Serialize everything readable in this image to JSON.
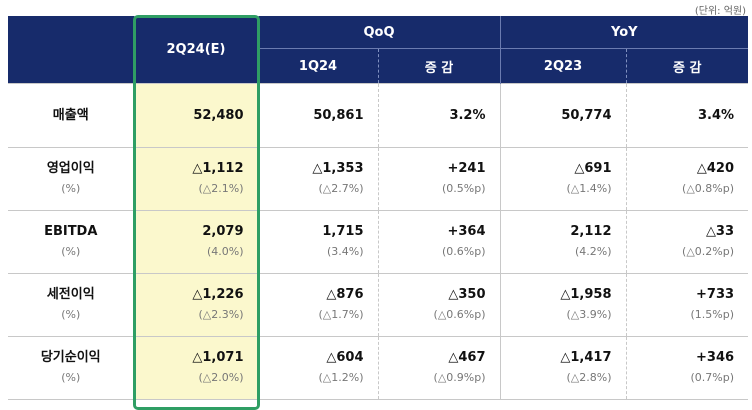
{
  "unit_note": "(단위: 억원)",
  "header": {
    "current": "2Q24(E)",
    "qoq_group": "QoQ",
    "yoy_group": "YoY",
    "q1": "1Q24",
    "qoq_change": "증 감",
    "q2": "2Q23",
    "yoy_change": "증 감"
  },
  "rows": [
    {
      "label": "매출액",
      "sub": "",
      "cur": "52,480",
      "cur_s": "",
      "q1": "50,861",
      "q1_s": "",
      "qoq": "3.2%",
      "qoq_s": "",
      "q2": "50,774",
      "q2_s": "",
      "yoy": "3.4%",
      "yoy_s": ""
    },
    {
      "label": "영업이익",
      "sub": "(%)",
      "cur": "△1,112",
      "cur_s": "(△2.1%)",
      "q1": "△1,353",
      "q1_s": "(△2.7%)",
      "qoq": "+241",
      "qoq_s": "(0.5%p)",
      "q2": "△691",
      "q2_s": "(△1.4%)",
      "yoy": "△420",
      "yoy_s": "(△0.8%p)"
    },
    {
      "label": "EBITDA",
      "sub": "(%)",
      "cur": "2,079",
      "cur_s": "(4.0%)",
      "q1": "1,715",
      "q1_s": "(3.4%)",
      "qoq": "+364",
      "qoq_s": "(0.6%p)",
      "q2": "2,112",
      "q2_s": "(4.2%)",
      "yoy": "△33",
      "yoy_s": "(△0.2%p)"
    },
    {
      "label": "세전이익",
      "sub": "(%)",
      "cur": "△1,226",
      "cur_s": "(△2.3%)",
      "q1": "△876",
      "q1_s": "(△1.7%)",
      "qoq": "△350",
      "qoq_s": "(△0.6%p)",
      "q2": "△1,958",
      "q2_s": "(△3.9%)",
      "yoy": "+733",
      "yoy_s": "(1.5%p)"
    },
    {
      "label": "당기순이익",
      "sub": "(%)",
      "cur": "△1,071",
      "cur_s": "(△2.0%)",
      "q1": "△604",
      "q1_s": "(△1.2%)",
      "qoq": "△467",
      "qoq_s": "(△0.9%p)",
      "q2": "△1,417",
      "q2_s": "(△2.8%)",
      "yoy": "+346",
      "yoy_s": "(0.7%p)"
    }
  ],
  "colors": {
    "header_bg": "#172b6b",
    "highlight_bg": "#fbf8cd",
    "highlight_border": "#2f9e64"
  }
}
